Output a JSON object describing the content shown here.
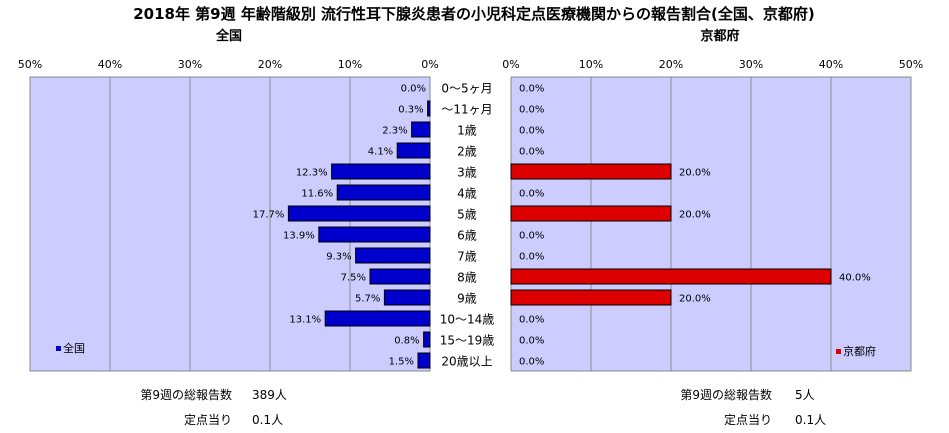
{
  "title": "2018年 第9週 年齢階級別 流行性耳下腺炎患者の小児科定点医療機関からの報告割合(全国、京都府)",
  "colors": {
    "plot_bg": "#ccccff",
    "national": "#0000cc",
    "kyoto": "#dd0000",
    "grid": "#8f8f8f"
  },
  "chart_data": [
    {
      "type": "bar",
      "orientation": "horizontal",
      "direction": "reversed",
      "title": "全国",
      "legend": "全国",
      "legend_position": "bottom-left",
      "xlim": [
        0,
        50
      ],
      "ticks": [
        "0%",
        "10%",
        "20%",
        "30%",
        "40%",
        "50%"
      ],
      "grid": true,
      "categories": [
        "0～5ヶ月",
        "～11ヶ月",
        "1歳",
        "2歳",
        "3歳",
        "4歳",
        "5歳",
        "6歳",
        "7歳",
        "8歳",
        "9歳",
        "10～14歳",
        "15～19歳",
        "20歳以上"
      ],
      "values": [
        0.0,
        0.3,
        2.3,
        4.1,
        12.3,
        11.6,
        17.7,
        13.9,
        9.3,
        7.5,
        5.7,
        13.1,
        0.8,
        1.5
      ],
      "value_labels": [
        "0.0%",
        "0.3%",
        "2.3%",
        "4.1%",
        "12.3%",
        "11.6%",
        "17.7%",
        "13.9%",
        "9.3%",
        "7.5%",
        "5.7%",
        "13.1%",
        "0.8%",
        "1.5%"
      ]
    },
    {
      "type": "bar",
      "orientation": "horizontal",
      "title": "京都府",
      "legend": "京都府",
      "legend_position": "bottom-right",
      "xlim": [
        0,
        50
      ],
      "ticks": [
        "0%",
        "10%",
        "20%",
        "30%",
        "40%",
        "50%"
      ],
      "grid": true,
      "categories": [
        "0～5ヶ月",
        "～11ヶ月",
        "1歳",
        "2歳",
        "3歳",
        "4歳",
        "5歳",
        "6歳",
        "7歳",
        "8歳",
        "9歳",
        "10～14歳",
        "15～19歳",
        "20歳以上"
      ],
      "values": [
        0,
        0,
        0,
        0,
        20,
        0,
        20,
        0,
        0,
        40,
        20,
        0,
        0,
        0
      ],
      "value_labels": [
        "0.0%",
        "0.0%",
        "0.0%",
        "0.0%",
        "20.0%",
        "0.0%",
        "20.0%",
        "0.0%",
        "0.0%",
        "40.0%",
        "20.0%",
        "0.0%",
        "0.0%",
        "0.0%"
      ]
    }
  ],
  "categories_display": [
    "0～5ヶ月",
    "～11ヶ月",
    "1歳",
    "2歳",
    "3歳",
    "4歳",
    "5歳",
    "6歳",
    "7歳",
    "8歳",
    "9歳",
    "10～14歳",
    "15～19歳",
    "20歳以上"
  ],
  "summary": {
    "national": {
      "total_label": "第9週の総報告数",
      "total_value": "389人",
      "per_label": "定点当り",
      "per_value": "0.1人"
    },
    "kyoto": {
      "total_label": "第9週の総報告数",
      "total_value": "5人",
      "per_label": "定点当り",
      "per_value": "0.1人"
    }
  }
}
